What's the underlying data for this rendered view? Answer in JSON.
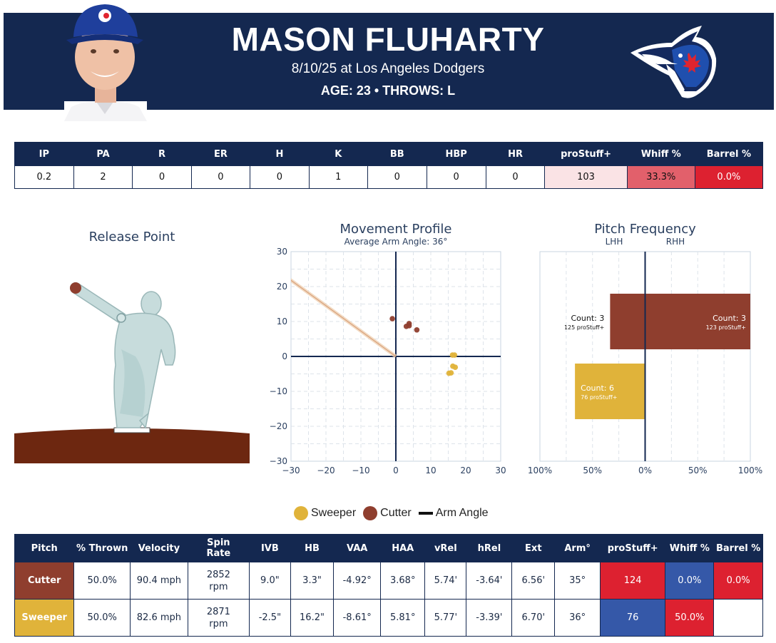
{
  "header": {
    "name": "MASON FLUHARTY",
    "game": "8/10/25 at Los Angeles Dodgers",
    "bio": "AGE: 23 • THROWS: L"
  },
  "stats": {
    "columns": [
      "IP",
      "PA",
      "R",
      "ER",
      "H",
      "K",
      "BB",
      "HBP",
      "HR",
      "proStuff+",
      "Whiff %",
      "Barrel %"
    ],
    "values": [
      "0.2",
      "2",
      "0",
      "0",
      "0",
      "1",
      "0",
      "0",
      "0",
      "103",
      "33.3%",
      "0.0%"
    ],
    "cell_colors": [
      "#ffffff",
      "#ffffff",
      "#ffffff",
      "#ffffff",
      "#ffffff",
      "#ffffff",
      "#ffffff",
      "#ffffff",
      "#ffffff",
      "#fae3e5",
      "#e2606b",
      "#dd2130"
    ],
    "cell_text_colors": [
      "#111",
      "#111",
      "#111",
      "#111",
      "#111",
      "#111",
      "#111",
      "#111",
      "#111",
      "#111",
      "#111",
      "#ffffff"
    ]
  },
  "panels": {
    "release_title": "Release Point",
    "movement_title": "Movement Profile",
    "movement_subtitle": "Average Arm Angle: 36°",
    "freq_title": "Pitch Frequency",
    "freq_lhh": "LHH",
    "freq_rhh": "RHH"
  },
  "legend": {
    "items": [
      "Sweeper",
      "Cutter",
      "Arm Angle"
    ],
    "colors": {
      "sweeper": "#e0b33a",
      "cutter": "#8f3e2e"
    }
  },
  "chart_data": [
    {
      "type": "scatter",
      "title": "Movement Profile",
      "subtitle": "Average Arm Angle: 36°",
      "xlim": [
        -30,
        30
      ],
      "ylim": [
        -30,
        30
      ],
      "xticks": [
        -30,
        -20,
        -10,
        0,
        10,
        20,
        30
      ],
      "yticks": [
        -30,
        -20,
        -10,
        0,
        10,
        20,
        30
      ],
      "grid": true,
      "arm_angle_deg": 36,
      "series": [
        {
          "name": "Cutter",
          "color": "#8f3e2e",
          "points": [
            [
              -1,
              10.8
            ],
            [
              3,
              8.6
            ],
            [
              3.8,
              9.4
            ],
            [
              3.8,
              8.8
            ],
            [
              6,
              7.6
            ]
          ]
        },
        {
          "name": "Sweeper",
          "color": "#e0b33a",
          "points": [
            [
              16.2,
              0.4
            ],
            [
              16.8,
              0.4
            ],
            [
              16.3,
              -2.8
            ],
            [
              17,
              -3.1
            ],
            [
              15.2,
              -4.8
            ],
            [
              15.8,
              -4.7
            ]
          ]
        }
      ]
    },
    {
      "type": "bar",
      "title": "Pitch Frequency",
      "xlim": [
        -100,
        100
      ],
      "xtick_labels": [
        "100%",
        "50%",
        "0%",
        "50%",
        "100%"
      ],
      "categories": [
        "Cutter",
        "Sweeper"
      ],
      "series": [
        {
          "name": "LHH",
          "values": [
            -33.3,
            -66.7
          ],
          "labels": [
            "Count: 3",
            "Count: 6"
          ],
          "sublabels": [
            "125 proStuff+",
            "76 proStuff+"
          ]
        },
        {
          "name": "RHH",
          "values": [
            100,
            0
          ],
          "labels": [
            "Count: 3",
            ""
          ],
          "sublabels": [
            "123 proStuff+",
            ""
          ]
        }
      ],
      "colors": [
        "#8f3e2e",
        "#e0b33a"
      ]
    }
  ],
  "pitch_table": {
    "columns": [
      "Pitch",
      "% Thrown",
      "Velocity",
      "Spin Rate",
      "IVB",
      "HB",
      "VAA",
      "HAA",
      "vRel",
      "hRel",
      "Ext",
      "Arm°",
      "proStuff+",
      "Whiff %",
      "Barrel %"
    ],
    "rows": [
      {
        "cells": [
          "Cutter",
          "50.0%",
          "90.4 mph",
          "2852 rpm",
          "9.0\"",
          "3.3\"",
          "-4.92°",
          "3.68°",
          "5.74'",
          "-3.64'",
          "6.56'",
          "35°",
          "124",
          "0.0%",
          "0.0%"
        ],
        "pitch_color": "#8f3e2e",
        "stat_colors": [
          "#dd2130",
          "#3558a8",
          "#dd2130"
        ]
      },
      {
        "cells": [
          "Sweeper",
          "50.0%",
          "82.6 mph",
          "2871 rpm",
          "-2.5\"",
          "16.2\"",
          "-8.61°",
          "5.81°",
          "5.77'",
          "-3.39'",
          "6.70'",
          "36°",
          "76",
          "50.0%",
          ""
        ],
        "pitch_color": "#e0b33a",
        "stat_colors": [
          "#3558a8",
          "#dd2130",
          "#ffffff"
        ]
      }
    ]
  }
}
